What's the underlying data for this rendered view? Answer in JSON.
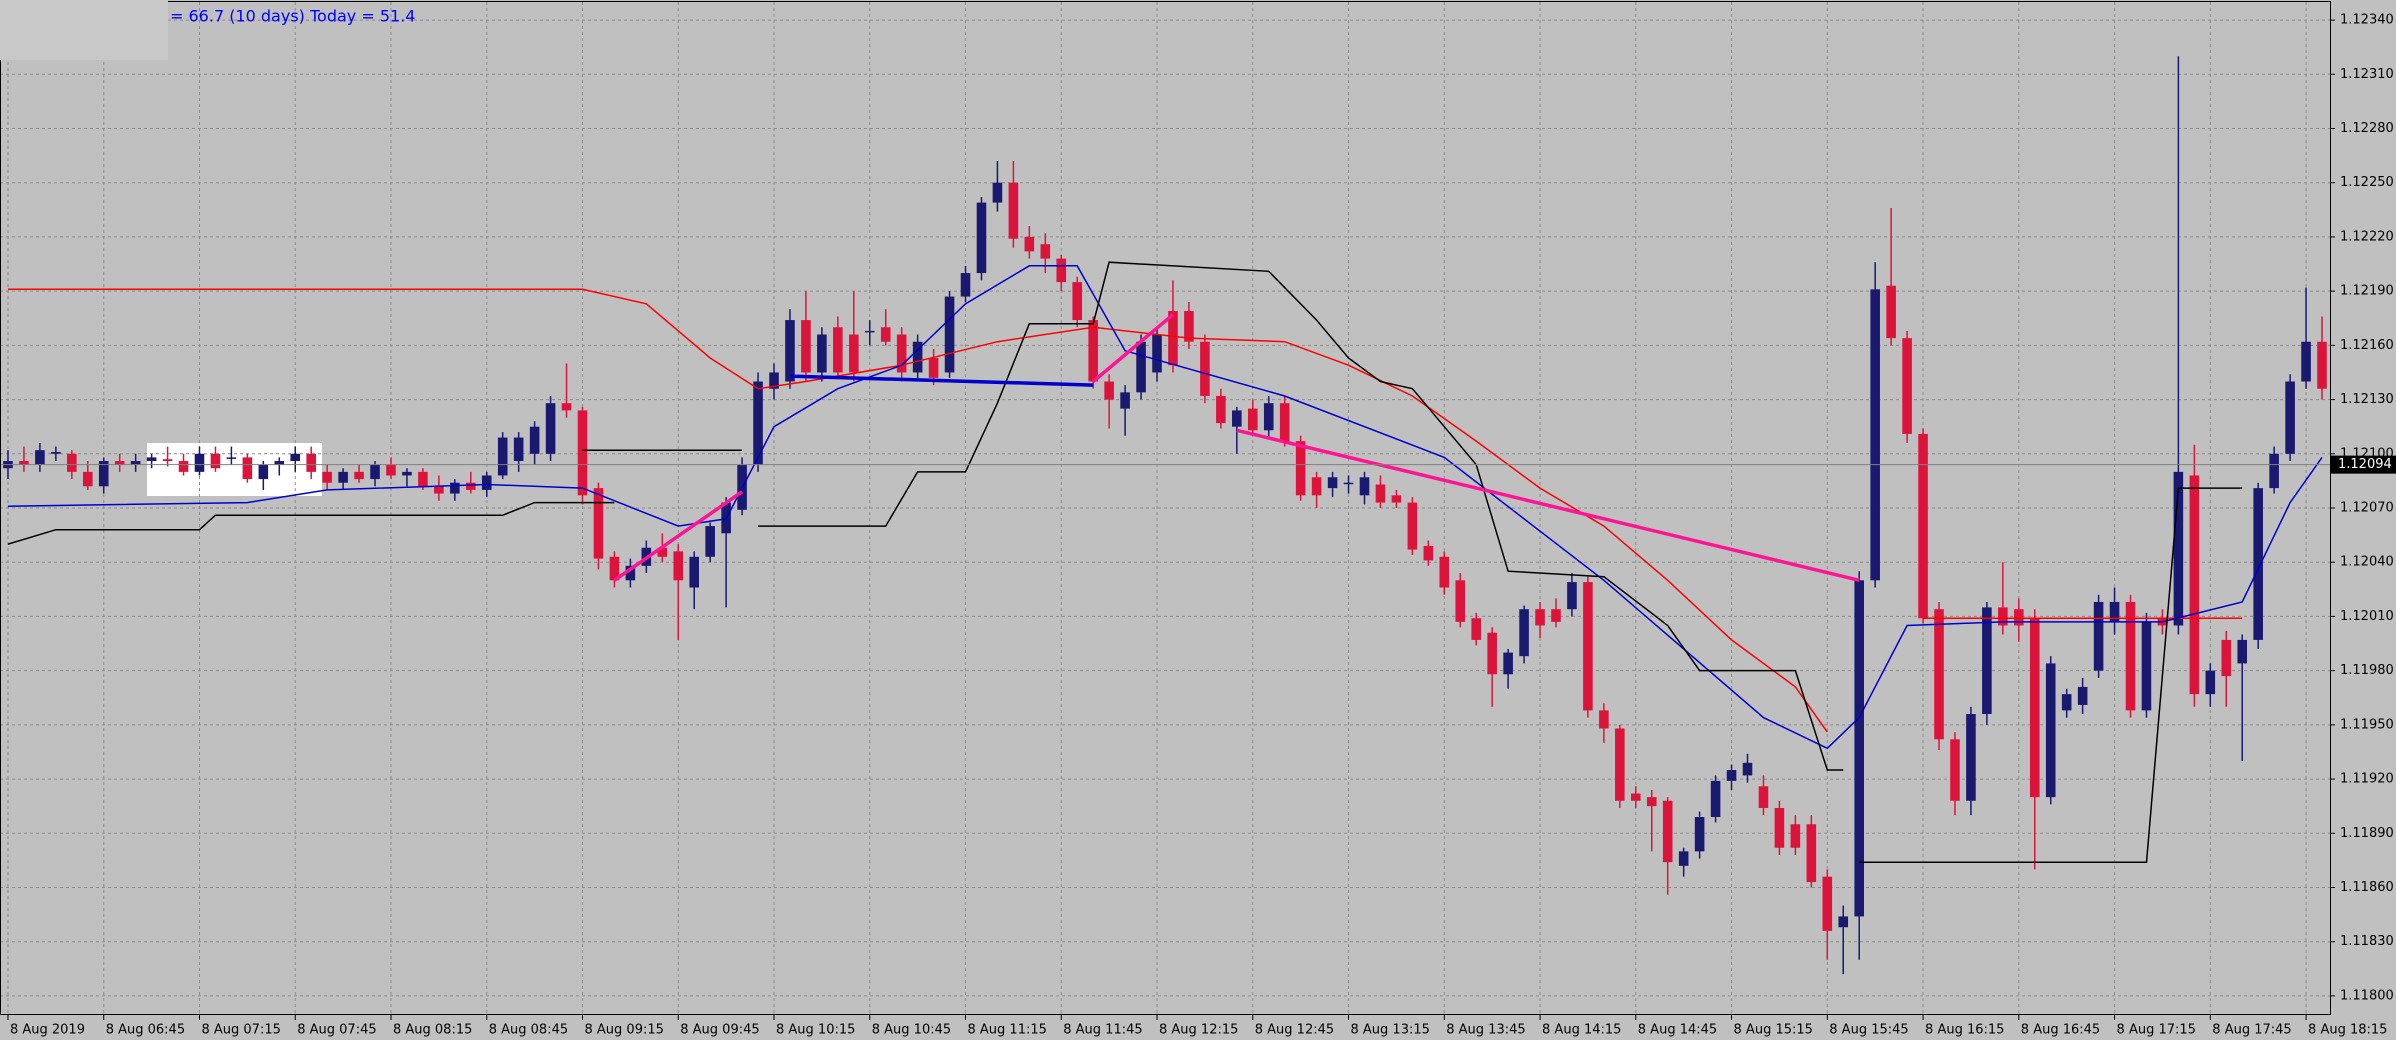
{
  "chart_data": {
    "type": "candlestick",
    "header": "= 66.7 (10 days)   Today = 51.4",
    "up_color": "#191970",
    "down_color": "#dc143c",
    "grid": true,
    "current_price": 1.12094,
    "ylim": [
      1.1179,
      1.1235
    ],
    "xlim": [
      -0.5,
      145.5
    ],
    "yticks": [
      {
        "value": 1.1234,
        "label": "1.12340"
      },
      {
        "value": 1.1231,
        "label": "1.12310"
      },
      {
        "value": 1.1228,
        "label": "1.12280"
      },
      {
        "value": 1.1225,
        "label": "1.12250"
      },
      {
        "value": 1.1222,
        "label": "1.12220"
      },
      {
        "value": 1.1219,
        "label": "1.12190"
      },
      {
        "value": 1.1216,
        "label": "1.12160"
      },
      {
        "value": 1.1213,
        "label": "1.12130"
      },
      {
        "value": 1.121,
        "label": "1.12100"
      },
      {
        "value": 1.1207,
        "label": "1.12070"
      },
      {
        "value": 1.1204,
        "label": "1.12040"
      },
      {
        "value": 1.1201,
        "label": "1.12010"
      },
      {
        "value": 1.1198,
        "label": "1.11980"
      },
      {
        "value": 1.1195,
        "label": "1.11950"
      },
      {
        "value": 1.1192,
        "label": "1.11920"
      },
      {
        "value": 1.1189,
        "label": "1.11890"
      },
      {
        "value": 1.1186,
        "label": "1.11860"
      },
      {
        "value": 1.1183,
        "label": "1.11830"
      },
      {
        "value": 1.118,
        "label": "1.11800"
      }
    ],
    "xticks": [
      {
        "value": 0,
        "label": "8 Aug 2019"
      },
      {
        "value": 6,
        "label": "8 Aug 06:45"
      },
      {
        "value": 12,
        "label": "8 Aug 07:15"
      },
      {
        "value": 18,
        "label": "8 Aug 07:45"
      },
      {
        "value": 24,
        "label": "8 Aug 08:15"
      },
      {
        "value": 30,
        "label": "8 Aug 08:45"
      },
      {
        "value": 36,
        "label": "8 Aug 09:15"
      },
      {
        "value": 42,
        "label": "8 Aug 09:45"
      },
      {
        "value": 48,
        "label": "8 Aug 10:15"
      },
      {
        "value": 54,
        "label": "8 Aug 10:45"
      },
      {
        "value": 60,
        "label": "8 Aug 11:15"
      },
      {
        "value": 66,
        "label": "8 Aug 11:45"
      },
      {
        "value": 72,
        "label": "8 Aug 12:15"
      },
      {
        "value": 78,
        "label": "8 Aug 12:45"
      },
      {
        "value": 84,
        "label": "8 Aug 13:15"
      },
      {
        "value": 90,
        "label": "8 Aug 13:45"
      },
      {
        "value": 96,
        "label": "8 Aug 14:15"
      },
      {
        "value": 102,
        "label": "8 Aug 14:45"
      },
      {
        "value": 108,
        "label": "8 Aug 15:15"
      },
      {
        "value": 114,
        "label": "8 Aug 15:45"
      },
      {
        "value": 120,
        "label": "8 Aug 16:15"
      },
      {
        "value": 126,
        "label": "8 Aug 16:45"
      },
      {
        "value": 132,
        "label": "8 Aug 17:15"
      },
      {
        "value": 138,
        "label": "8 Aug 17:45"
      },
      {
        "value": 144,
        "label": "8 Aug 18:15"
      }
    ],
    "ohlc": [
      [
        1.12092,
        1.12102,
        1.12086,
        1.12096
      ],
      [
        1.12096,
        1.12104,
        1.1209,
        1.12094
      ],
      [
        1.12094,
        1.12106,
        1.1209,
        1.12102
      ],
      [
        1.121,
        1.12104,
        1.12096,
        1.12101
      ],
      [
        1.121,
        1.12102,
        1.12086,
        1.1209
      ],
      [
        1.1209,
        1.12096,
        1.1208,
        1.12082
      ],
      [
        1.12082,
        1.12098,
        1.12078,
        1.12096
      ],
      [
        1.12096,
        1.121,
        1.1209,
        1.12094
      ],
      [
        1.12094,
        1.121,
        1.1209,
        1.12096
      ],
      [
        1.12096,
        1.121,
        1.12092,
        1.12098
      ],
      [
        1.12097,
        1.12104,
        1.12093,
        1.12096
      ],
      [
        1.12096,
        1.121,
        1.12088,
        1.1209
      ],
      [
        1.1209,
        1.12104,
        1.12088,
        1.121
      ],
      [
        1.121,
        1.12104,
        1.1209,
        1.12092
      ],
      [
        1.12098,
        1.12104,
        1.12094,
        1.12098
      ],
      [
        1.12098,
        1.121,
        1.12084,
        1.12086
      ],
      [
        1.12086,
        1.12096,
        1.1208,
        1.12094
      ],
      [
        1.12094,
        1.12098,
        1.12088,
        1.12096
      ],
      [
        1.12096,
        1.12104,
        1.1209,
        1.121
      ],
      [
        1.121,
        1.12104,
        1.12086,
        1.1209
      ],
      [
        1.1209,
        1.12094,
        1.1208,
        1.12084
      ],
      [
        1.12084,
        1.12092,
        1.1208,
        1.1209
      ],
      [
        1.1209,
        1.12094,
        1.12084,
        1.12086
      ],
      [
        1.12086,
        1.12096,
        1.12082,
        1.12094
      ],
      [
        1.12094,
        1.12098,
        1.12086,
        1.12088
      ],
      [
        1.12088,
        1.12092,
        1.12082,
        1.1209
      ],
      [
        1.1209,
        1.12092,
        1.1208,
        1.12082
      ],
      [
        1.12082,
        1.12088,
        1.12074,
        1.12078
      ],
      [
        1.12078,
        1.12086,
        1.12074,
        1.12084
      ],
      [
        1.12084,
        1.1209,
        1.12078,
        1.1208
      ],
      [
        1.1208,
        1.1209,
        1.12076,
        1.12088
      ],
      [
        1.12088,
        1.12112,
        1.12086,
        1.12109
      ],
      [
        1.12096,
        1.12112,
        1.1209,
        1.12109
      ],
      [
        1.121,
        1.12118,
        1.12094,
        1.12115
      ],
      [
        1.121,
        1.12132,
        1.12096,
        1.12128
      ],
      [
        1.12128,
        1.1215,
        1.1212,
        1.12124
      ],
      [
        1.12124,
        1.12126,
        1.12072,
        1.12077
      ],
      [
        1.12081,
        1.12084,
        1.12036,
        1.12042
      ],
      [
        1.12043,
        1.12046,
        1.12026,
        1.1203
      ],
      [
        1.1203,
        1.12042,
        1.12026,
        1.12038
      ],
      [
        1.12038,
        1.12052,
        1.12034,
        1.12048
      ],
      [
        1.12048,
        1.12056,
        1.1204,
        1.12043
      ],
      [
        1.12046,
        1.1205,
        1.11997,
        1.1203
      ],
      [
        1.12026,
        1.12046,
        1.12014,
        1.12043
      ],
      [
        1.12043,
        1.12062,
        1.1204,
        1.1206
      ],
      [
        1.12056,
        1.12076,
        1.12015,
        1.12073
      ],
      [
        1.12069,
        1.12098,
        1.12066,
        1.12094
      ],
      [
        1.12094,
        1.12145,
        1.1209,
        1.1214
      ],
      [
        1.12136,
        1.1215,
        1.1213,
        1.12145
      ],
      [
        1.1214,
        1.1218,
        1.12136,
        1.12174
      ],
      [
        1.12174,
        1.1219,
        1.1214,
        1.12145
      ],
      [
        1.12145,
        1.1217,
        1.1214,
        1.12166
      ],
      [
        1.1217,
        1.12176,
        1.12142,
        1.12145
      ],
      [
        1.12166,
        1.1219,
        1.1214,
        1.12145
      ],
      [
        1.12168,
        1.12174,
        1.1216,
        1.12168
      ],
      [
        1.1217,
        1.1218,
        1.1216,
        1.12162
      ],
      [
        1.12166,
        1.1217,
        1.1214,
        1.12145
      ],
      [
        1.12145,
        1.12166,
        1.1214,
        1.12162
      ],
      [
        1.12153,
        1.12158,
        1.12138,
        1.12142
      ],
      [
        1.12145,
        1.1219,
        1.12142,
        1.12187
      ],
      [
        1.12187,
        1.12204,
        1.12184,
        1.122
      ],
      [
        1.122,
        1.12242,
        1.12196,
        1.12239
      ],
      [
        1.12239,
        1.12262,
        1.12234,
        1.1225
      ],
      [
        1.1225,
        1.12262,
        1.12214,
        1.12219
      ],
      [
        1.1222,
        1.12226,
        1.12208,
        1.12212
      ],
      [
        1.12216,
        1.12222,
        1.122,
        1.12208
      ],
      [
        1.12208,
        1.1221,
        1.1219,
        1.12195
      ],
      [
        1.12195,
        1.12198,
        1.1217,
        1.12174
      ],
      [
        1.12174,
        1.12176,
        1.12136,
        1.1214
      ],
      [
        1.1214,
        1.12144,
        1.12114,
        1.1213
      ],
      [
        1.12125,
        1.12138,
        1.1211,
        1.12134
      ],
      [
        1.12134,
        1.12166,
        1.1213,
        1.12162
      ],
      [
        1.12145,
        1.1217,
        1.1214,
        1.12166
      ],
      [
        1.12179,
        1.12196,
        1.12145,
        1.12149
      ],
      [
        1.12179,
        1.12184,
        1.12158,
        1.12162
      ],
      [
        1.12162,
        1.12166,
        1.12128,
        1.12132
      ],
      [
        1.12132,
        1.12136,
        1.12114,
        1.12117
      ],
      [
        1.12115,
        1.12126,
        1.121,
        1.12124
      ],
      [
        1.12125,
        1.1213,
        1.1211,
        1.12113
      ],
      [
        1.12113,
        1.12132,
        1.12108,
        1.12128
      ],
      [
        1.12128,
        1.12132,
        1.12104,
        1.12107
      ],
      [
        1.12107,
        1.1211,
        1.12074,
        1.12077
      ],
      [
        1.12087,
        1.1209,
        1.1207,
        1.12077
      ],
      [
        1.12081,
        1.1209,
        1.12076,
        1.12087
      ],
      [
        1.12084,
        1.12088,
        1.12078,
        1.12084
      ],
      [
        1.12077,
        1.1209,
        1.12072,
        1.12087
      ],
      [
        1.12083,
        1.12088,
        1.1207,
        1.12073
      ],
      [
        1.12077,
        1.1208,
        1.1207,
        1.12073
      ],
      [
        1.12073,
        1.12076,
        1.12044,
        1.12047
      ],
      [
        1.12049,
        1.12052,
        1.12038,
        1.12041
      ],
      [
        1.12043,
        1.12046,
        1.12022,
        1.12026
      ],
      [
        1.1203,
        1.12034,
        1.12004,
        1.12007
      ],
      [
        1.12009,
        1.12012,
        1.11994,
        1.11997
      ],
      [
        1.12001,
        1.12004,
        1.1196,
        1.11978
      ],
      [
        1.11978,
        1.11992,
        1.1197,
        1.1199
      ],
      [
        1.11988,
        1.12016,
        1.11984,
        1.12014
      ],
      [
        1.12014,
        1.12018,
        1.11998,
        1.12005
      ],
      [
        1.12014,
        1.1202,
        1.12004,
        1.12007
      ],
      [
        1.12014,
        1.12034,
        1.1201,
        1.12029
      ],
      [
        1.12029,
        1.12032,
        1.11954,
        1.11958
      ],
      [
        1.11958,
        1.11962,
        1.1194,
        1.11948
      ],
      [
        1.11948,
        1.1195,
        1.11904,
        1.11908
      ],
      [
        1.11912,
        1.11916,
        1.11904,
        1.11908
      ],
      [
        1.1191,
        1.11914,
        1.1188,
        1.11905
      ],
      [
        1.11908,
        1.1191,
        1.11856,
        1.11874
      ],
      [
        1.11872,
        1.11882,
        1.11866,
        1.1188
      ],
      [
        1.1188,
        1.11902,
        1.11876,
        1.11899
      ],
      [
        1.11899,
        1.11922,
        1.11896,
        1.11919
      ],
      [
        1.11919,
        1.11928,
        1.11914,
        1.11925
      ],
      [
        1.11922,
        1.11934,
        1.11918,
        1.11929
      ],
      [
        1.11916,
        1.11922,
        1.119,
        1.11904
      ],
      [
        1.11904,
        1.11908,
        1.11878,
        1.11882
      ],
      [
        1.11895,
        1.119,
        1.11878,
        1.11882
      ],
      [
        1.11895,
        1.119,
        1.1186,
        1.11863
      ],
      [
        1.11866,
        1.1187,
        1.1182,
        1.11836
      ],
      [
        1.11838,
        1.1185,
        1.11812,
        1.11844
      ],
      [
        1.11844,
        1.12035,
        1.1182,
        1.1203
      ],
      [
        1.1203,
        1.12206,
        1.12026,
        1.12191
      ],
      [
        1.12193,
        1.12236,
        1.1216,
        1.12164
      ],
      [
        1.12164,
        1.12168,
        1.12106,
        1.12111
      ],
      [
        1.12111,
        1.12114,
        1.12006,
        1.12009
      ],
      [
        1.12014,
        1.12018,
        1.11936,
        1.11942
      ],
      [
        1.11942,
        1.11946,
        1.119,
        1.11908
      ],
      [
        1.11908,
        1.1196,
        1.119,
        1.11956
      ],
      [
        1.11956,
        1.12018,
        1.1195,
        1.12015
      ],
      [
        1.12015,
        1.1204,
        1.12,
        1.12005
      ],
      [
        1.12014,
        1.1202,
        1.11996,
        1.12005
      ],
      [
        1.12009,
        1.12014,
        1.1187,
        1.1191
      ],
      [
        1.1191,
        1.11988,
        1.11906,
        1.11984
      ],
      [
        1.11958,
        1.1197,
        1.11954,
        1.11967
      ],
      [
        1.11961,
        1.11976,
        1.11956,
        1.11971
      ],
      [
        1.1198,
        1.12022,
        1.11976,
        1.12018
      ],
      [
        1.12007,
        1.12026,
        1.12,
        1.12018
      ],
      [
        1.12018,
        1.12022,
        1.11954,
        1.11958
      ],
      [
        1.11958,
        1.12012,
        1.11954,
        1.12007
      ],
      [
        1.12009,
        1.12014,
        1.12,
        1.12005
      ],
      [
        1.12005,
        1.1232,
        1.12,
        1.1209
      ],
      [
        1.12088,
        1.12105,
        1.1196,
        1.11967
      ],
      [
        1.11967,
        1.11984,
        1.1196,
        1.1198
      ],
      [
        1.11997,
        1.12002,
        1.1196,
        1.11977
      ],
      [
        1.11984,
        1.12,
        1.1193,
        1.11997
      ],
      [
        1.11997,
        1.12084,
        1.11992,
        1.12081
      ],
      [
        1.12081,
        1.12104,
        1.12078,
        1.121
      ],
      [
        1.121,
        1.12144,
        1.12096,
        1.1214
      ],
      [
        1.1214,
        1.12192,
        1.12136,
        1.12162
      ],
      [
        1.12162,
        1.12176,
        1.1213,
        1.12136
      ]
    ],
    "lines": [
      {
        "color": "#ff0000",
        "width": 1.5,
        "x": [
          0,
          36,
          40,
          44,
          47,
          50,
          56,
          62,
          68,
          74,
          80,
          84,
          88,
          92,
          96,
          100,
          104,
          108,
          112,
          114,
          null,
          120,
          140
        ],
        "values": [
          1.12191,
          1.12191,
          1.12183,
          1.12153,
          1.12136,
          1.1214,
          1.12149,
          1.12162,
          1.1217,
          1.12164,
          1.12162,
          1.12149,
          1.12132,
          1.12107,
          1.12081,
          1.1206,
          1.1203,
          1.11997,
          1.11971,
          1.11946,
          null,
          1.12009,
          1.12009
        ]
      },
      {
        "color": "#0000cd",
        "width": 1.5,
        "x": [
          0,
          15,
          20,
          30,
          36,
          42,
          45,
          48,
          52,
          56,
          60,
          64,
          67,
          70,
          80,
          90,
          100,
          110,
          114,
          116,
          119,
          125,
          135,
          140,
          143,
          145
        ],
        "values": [
          1.12071,
          1.12073,
          1.1208,
          1.12083,
          1.12081,
          1.1206,
          1.12064,
          1.12115,
          1.12136,
          1.12149,
          1.12183,
          1.12204,
          1.12204,
          1.12157,
          1.12132,
          1.12098,
          1.1203,
          1.11954,
          1.11937,
          1.11954,
          1.12005,
          1.12007,
          1.12007,
          1.12018,
          1.12073,
          1.12098
        ]
      },
      {
        "color": "#000000",
        "width": 1.5,
        "x": [
          0,
          3,
          12,
          13,
          31,
          33,
          38,
          null,
          47,
          55,
          57,
          60,
          62,
          64,
          68,
          69,
          79,
          82,
          84,
          86,
          88,
          90,
          92,
          94,
          100,
          104,
          106,
          112,
          114,
          115,
          null,
          116,
          134,
          136,
          140
        ],
        "values": [
          1.1205,
          1.12058,
          1.12058,
          1.12066,
          1.12066,
          1.12073,
          1.12073,
          null,
          1.1206,
          1.1206,
          1.1209,
          1.1209,
          1.12128,
          1.12172,
          1.12172,
          1.12206,
          1.12201,
          1.12174,
          1.12153,
          1.1214,
          1.12136,
          1.12115,
          1.12094,
          1.12035,
          1.12032,
          1.12005,
          1.1198,
          1.1198,
          1.11925,
          1.11925,
          null,
          1.11874,
          1.11874,
          1.12081,
          1.12081
        ]
      },
      {
        "color": "#000000",
        "width": 1.5,
        "x": [
          36,
          46
        ],
        "values": [
          1.12102,
          1.12102
        ]
      },
      {
        "color": "#ff1493",
        "width": 3.5,
        "x": [
          38,
          46,
          null,
          68,
          73,
          null,
          77,
          116
        ],
        "values": [
          1.1203,
          1.12079,
          null,
          1.1214,
          1.12177,
          null,
          1.12113,
          1.1203
        ]
      },
      {
        "color": "#0000cd",
        "width": 3.5,
        "x": [
          49,
          68
        ],
        "values": [
          1.12143,
          1.12138
        ]
      }
    ]
  }
}
